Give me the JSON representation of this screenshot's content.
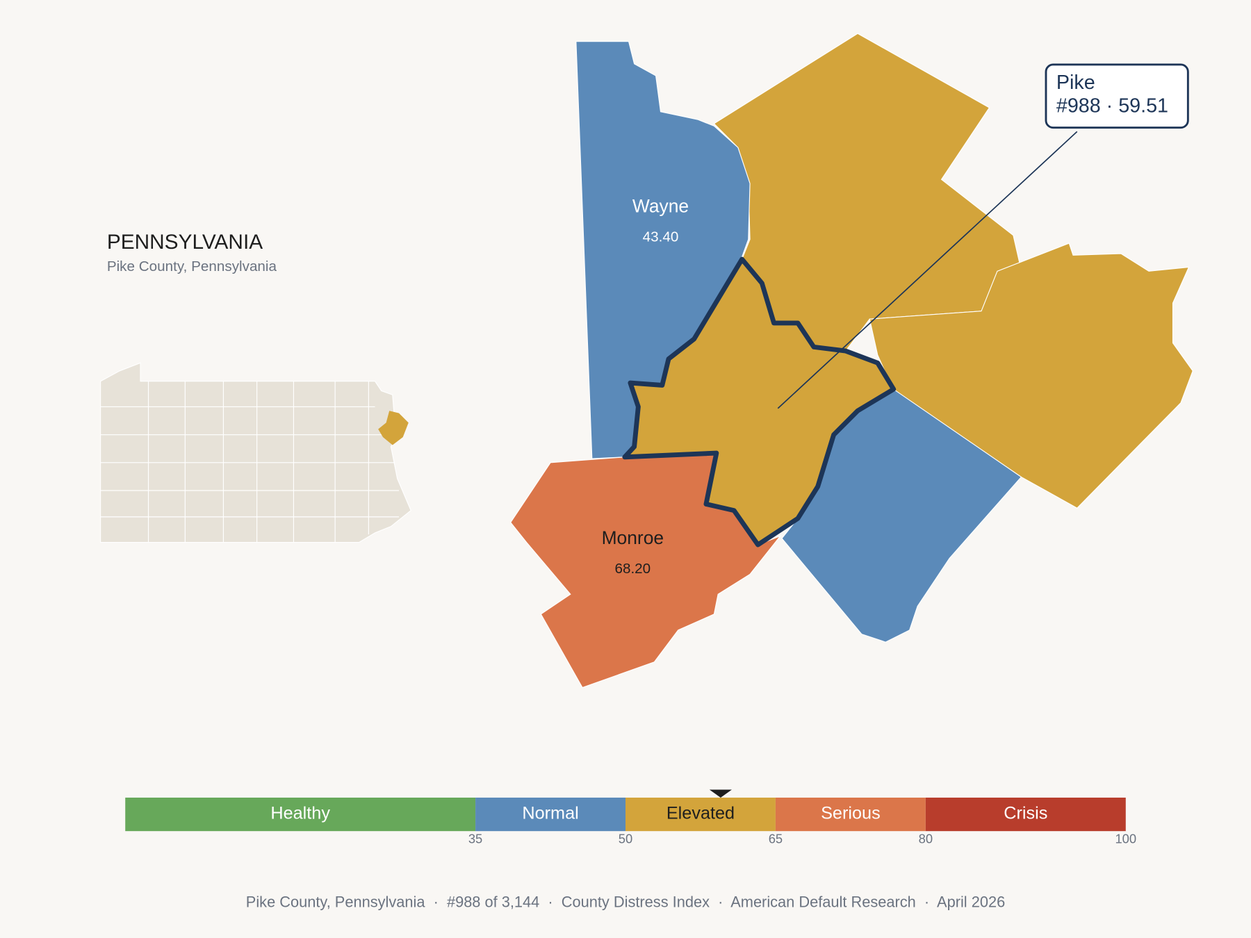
{
  "state": {
    "title": "PENNSYLVANIA",
    "subtitle": "Pike County, Pennsylvania"
  },
  "counties": [
    {
      "name": "Wayne",
      "value": 43.4,
      "value_label": "43.40"
    },
    {
      "name": "Monroe",
      "value": 68.2,
      "value_label": "68.20"
    }
  ],
  "callout": {
    "name": "Pike",
    "detail": "#988 · 59.51",
    "value": 59.51
  },
  "scale": {
    "range": [
      0,
      100
    ],
    "ticks": [
      35,
      50,
      65,
      80,
      100
    ],
    "bands": [
      {
        "label": "Healthy",
        "color": "#67a85a"
      },
      {
        "label": "Normal",
        "color": "#5b8ab9"
      },
      {
        "label": "Elevated",
        "color": "#d3a43b"
      },
      {
        "label": "Serious",
        "color": "#db764a"
      },
      {
        "label": "Crisis",
        "color": "#b83d2c"
      }
    ]
  },
  "footer": "Pike County, Pennsylvania  ·  #988 of 3,144  ·  County Distress Index  ·  American Default Research  ·  April 2026"
}
